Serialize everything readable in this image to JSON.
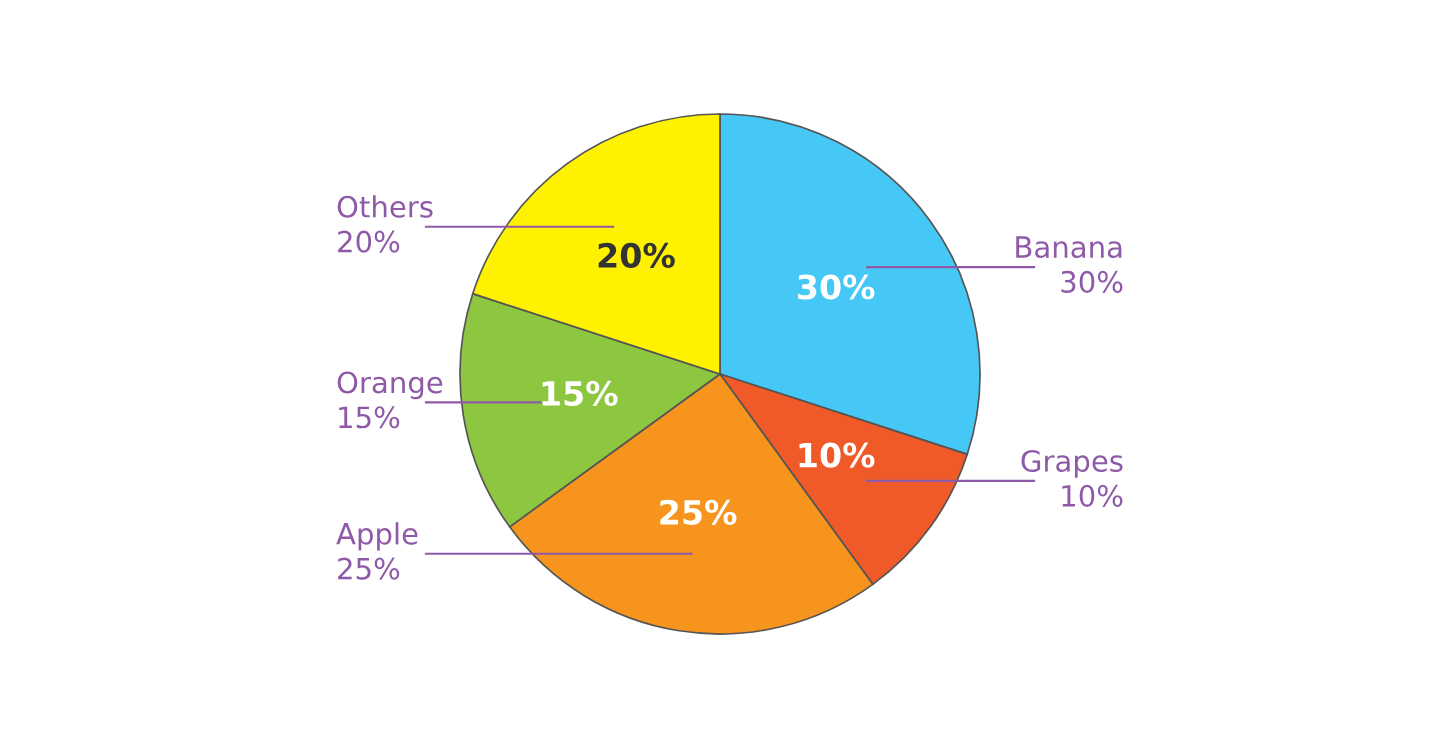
{
  "chart_data": {
    "type": "pie",
    "categories": [
      "Banana",
      "Grapes",
      "Apple",
      "Orange",
      "Others"
    ],
    "values": [
      30,
      10,
      25,
      15,
      20
    ],
    "value_labels": [
      "30%",
      "10%",
      "25%",
      "15%",
      "20%"
    ],
    "colors": [
      "#45c8f5",
      "#f05a28",
      "#f7941d",
      "#8dc63f",
      "#fff200"
    ],
    "legend": false
  }
}
